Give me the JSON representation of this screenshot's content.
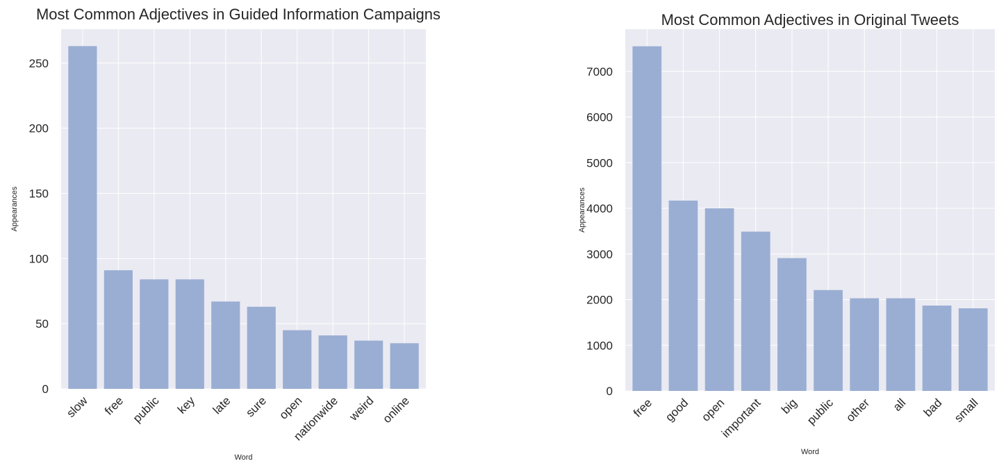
{
  "chart_data": [
    {
      "type": "bar",
      "title": "Most Common Adjectives in Guided Information Campaigns",
      "xlabel": "Word",
      "ylabel": "Appearances",
      "categories": [
        "slow",
        "free",
        "public",
        "key",
        "late",
        "sure",
        "open",
        "nationwide",
        "weird",
        "online"
      ],
      "values": [
        263,
        91,
        84,
        84,
        67,
        63,
        45,
        41,
        37,
        35
      ],
      "ylim": [
        0,
        276
      ],
      "yticks": [
        0,
        50,
        100,
        150,
        200,
        250
      ],
      "grid": true,
      "legend": "none",
      "bar_color": "#9aaed3",
      "background_color": "#eaeaf2"
    },
    {
      "type": "bar",
      "title": "Most Common Adjectives in Original Tweets",
      "xlabel": "Word",
      "ylabel": "Appearances",
      "categories": [
        "free",
        "good",
        "open",
        "important",
        "big",
        "public",
        "other",
        "all",
        "bad",
        "small"
      ],
      "values": [
        7550,
        4170,
        4000,
        3490,
        2910,
        2210,
        2030,
        2030,
        1870,
        1810
      ],
      "ylim": [
        0,
        7925
      ],
      "yticks": [
        0,
        1000,
        2000,
        3000,
        4000,
        5000,
        6000,
        7000
      ],
      "grid": true,
      "legend": "none",
      "bar_color": "#9aaed3",
      "background_color": "#eaeaf2"
    }
  ]
}
